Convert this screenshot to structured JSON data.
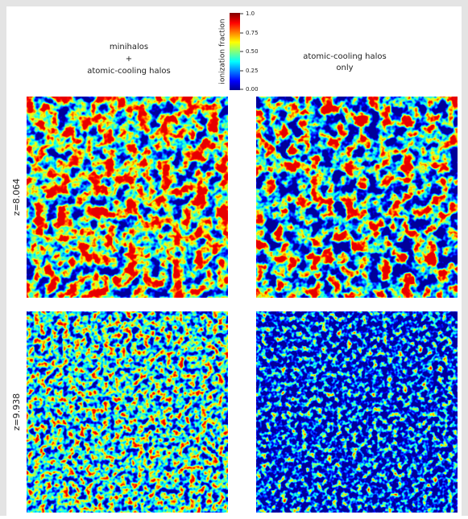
{
  "columns": [
    {
      "lines": [
        "minihalos",
        "+",
        "atomic-cooling halos"
      ]
    },
    {
      "lines": [
        "atomic-cooling halos",
        "only"
      ]
    }
  ],
  "rows": [
    {
      "label": "z=8.064"
    },
    {
      "label": "z=9.938"
    }
  ],
  "colorbar": {
    "title": "ionization fraction",
    "ticks": [
      "1.0",
      "0.75",
      "0.50",
      "0.25",
      "0.00"
    ]
  }
}
